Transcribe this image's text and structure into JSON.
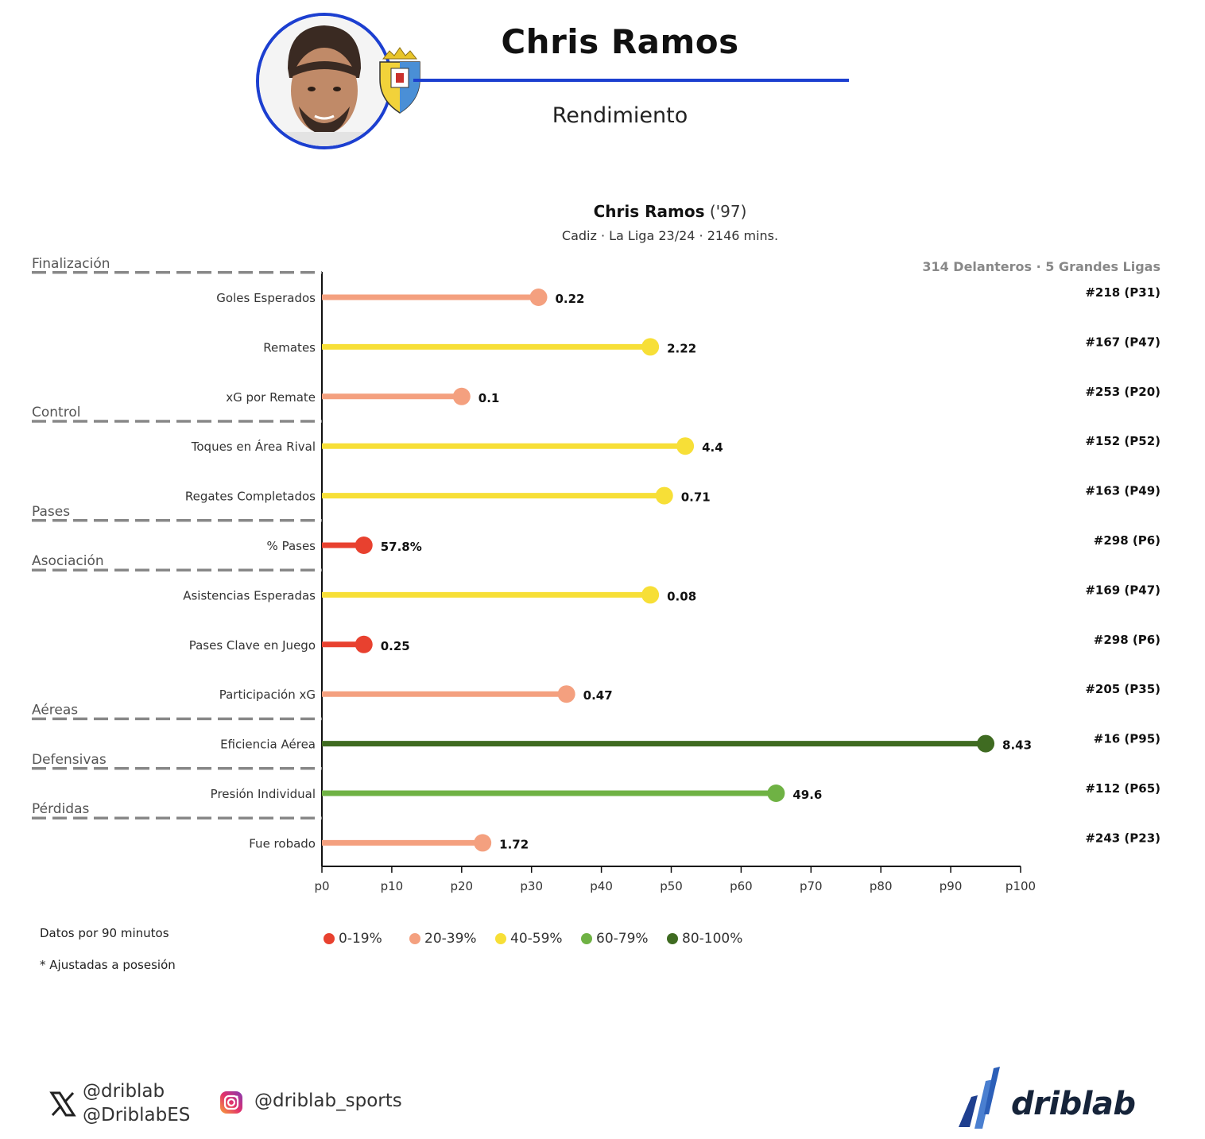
{
  "header": {
    "player_name": "Chris Ramos",
    "subtitle": "Rendimiento",
    "accent_color": "#1c3fd0"
  },
  "chart_data": {
    "type": "lollipop",
    "title": "Chris Ramos",
    "title_year": "('97)",
    "subtitle": "Cadiz · La Liga 23/24 · 2146 mins.",
    "population_label": "314 Delanteros · 5 Grandes Ligas",
    "x_ticks": [
      "p0",
      "p10",
      "p20",
      "p30",
      "p40",
      "p50",
      "p60",
      "p70",
      "p80",
      "p90",
      "p100"
    ],
    "xlim": [
      0,
      100
    ],
    "categories": [
      {
        "name": "Finalización",
        "before_metric": 0
      },
      {
        "name": "Control",
        "before_metric": 3
      },
      {
        "name": "Pases",
        "before_metric": 5
      },
      {
        "name": "Asociación",
        "before_metric": 6
      },
      {
        "name": "Aéreas",
        "before_metric": 9
      },
      {
        "name": "Defensivas",
        "before_metric": 10
      },
      {
        "name": "Pérdidas",
        "before_metric": 11
      }
    ],
    "metrics": [
      {
        "label": "Goles Esperados",
        "percentile": 31,
        "value": "0.22",
        "rank": "#218 (P31)"
      },
      {
        "label": "Remates",
        "percentile": 47,
        "value": "2.22",
        "rank": "#167 (P47)"
      },
      {
        "label": "xG por Remate",
        "percentile": 20,
        "value": "0.1",
        "rank": "#253 (P20)"
      },
      {
        "label": "Toques en Área Rival",
        "percentile": 52,
        "value": "4.4",
        "rank": "#152 (P52)"
      },
      {
        "label": "Regates Completados",
        "percentile": 49,
        "value": "0.71",
        "rank": "#163 (P49)"
      },
      {
        "label": "% Pases",
        "percentile": 6,
        "value": "57.8%",
        "rank": "#298 (P6)"
      },
      {
        "label": "Asistencias Esperadas",
        "percentile": 47,
        "value": "0.08",
        "rank": "#169 (P47)"
      },
      {
        "label": "Pases Clave en Juego",
        "percentile": 6,
        "value": "0.25",
        "rank": "#298 (P6)"
      },
      {
        "label": "Participación xG",
        "percentile": 35,
        "value": "0.47",
        "rank": "#205 (P35)"
      },
      {
        "label": "Eficiencia Aérea",
        "percentile": 95,
        "value": "8.43",
        "rank": "#16 (P95)"
      },
      {
        "label": "Presión Individual",
        "percentile": 65,
        "value": "49.6",
        "rank": "#112 (P65)"
      },
      {
        "label": "Fue robado",
        "percentile": 23,
        "value": "1.72",
        "rank": "#243 (P23)"
      }
    ],
    "legend": [
      {
        "label": "0-19%",
        "color": "#e8412f"
      },
      {
        "label": "20-39%",
        "color": "#f4a07f"
      },
      {
        "label": "40-59%",
        "color": "#f7df37"
      },
      {
        "label": "60-79%",
        "color": "#6fb244"
      },
      {
        "label": "80-100%",
        "color": "#3f6b21"
      }
    ]
  },
  "notes": {
    "per90": "Datos por 90 minutos",
    "adjusted": "* Ajustadas a posesión"
  },
  "social": {
    "x_handle_1": "@driblab",
    "x_handle_2": "@DriblabES",
    "instagram_handle": "@driblab_sports"
  },
  "brand": {
    "name": "driblab"
  }
}
